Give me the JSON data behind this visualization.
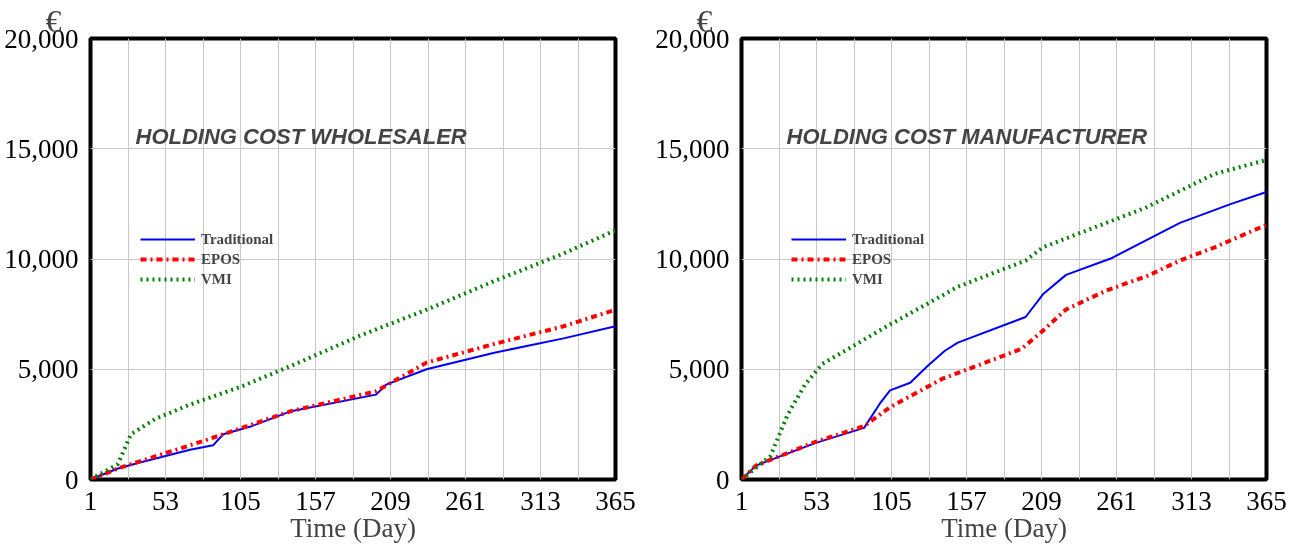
{
  "chart_data": [
    {
      "type": "line",
      "title": "HOLDING COST WHOLESALER",
      "xlabel": "Time (Day)",
      "ylabel": "€",
      "xlim": [
        1,
        365
      ],
      "ylim": [
        0,
        20000
      ],
      "xticks": [
        1,
        {
          "value": 27,
          "label": null
        },
        53,
        {
          "value": 79,
          "label": null
        },
        105,
        {
          "value": 131,
          "label": null
        },
        157,
        {
          "value": 183,
          "label": null
        },
        209,
        {
          "value": 235,
          "label": null
        },
        261,
        {
          "value": 287,
          "label": null
        },
        313,
        {
          "value": 339,
          "label": null
        },
        365
      ],
      "yticks": [
        {
          "value": 0,
          "label": "0"
        },
        {
          "value": 5000,
          "label": "5,000"
        },
        {
          "value": 10000,
          "label": "10,000"
        },
        {
          "value": 15000,
          "label": "15,000"
        },
        {
          "value": 20000,
          "label": "20,000"
        }
      ],
      "grid": true,
      "legend": "top left",
      "series": [
        {
          "name": "Traditional",
          "color": "#0000ff",
          "line_style": "solid",
          "x": [
            1,
            20,
            34,
            70,
            86,
            93,
            112,
            126,
            140,
            199,
            206,
            234,
            281,
            329,
            365
          ],
          "values": [
            0,
            500,
            750,
            1350,
            1550,
            2050,
            2400,
            2750,
            3100,
            3850,
            4300,
            5000,
            5750,
            6400,
            6950
          ]
        },
        {
          "name": "EPOS",
          "color": "#ff0000",
          "line_style": "dashdot",
          "x": [
            1,
            20,
            34,
            70,
            93,
            140,
            199,
            234,
            281,
            329,
            365
          ],
          "values": [
            0,
            500,
            800,
            1550,
            2050,
            3100,
            4000,
            5300,
            6150,
            6950,
            7700
          ]
        },
        {
          "name": "VMI",
          "color": "#008000",
          "line_style": "dotted",
          "x": [
            1,
            20,
            29,
            46,
            70,
            105,
            140,
            187,
            234,
            281,
            329,
            365
          ],
          "values": [
            0,
            700,
            2050,
            2750,
            3400,
            4200,
            5150,
            6500,
            7700,
            9000,
            10250,
            11300
          ]
        }
      ]
    },
    {
      "type": "line",
      "title": "HOLDING COST MANUFACTURER",
      "xlabel": "Time (Day)",
      "ylabel": "€",
      "xlim": [
        1,
        365
      ],
      "ylim": [
        0,
        20000
      ],
      "xticks": [
        1,
        {
          "value": 27,
          "label": null
        },
        53,
        {
          "value": 79,
          "label": null
        },
        105,
        {
          "value": 131,
          "label": null
        },
        157,
        {
          "value": 183,
          "label": null
        },
        209,
        {
          "value": 235,
          "label": null
        },
        261,
        {
          "value": 287,
          "label": null
        },
        313,
        {
          "value": 339,
          "label": null
        },
        365
      ],
      "yticks": [
        {
          "value": 0,
          "label": "0"
        },
        {
          "value": 5000,
          "label": "5,000"
        },
        {
          "value": 10000,
          "label": "10,000"
        },
        {
          "value": 15000,
          "label": "15,000"
        },
        {
          "value": 20000,
          "label": "20,000"
        }
      ],
      "grid": true,
      "legend": "top left",
      "series": [
        {
          "name": "Traditional",
          "color": "#0000ff",
          "line_style": "solid",
          "x": [
            1,
            11,
            52,
            86,
            97,
            104,
            118,
            130,
            142,
            151,
            198,
            210,
            226,
            257,
            305,
            340,
            365
          ],
          "values": [
            0,
            630,
            1650,
            2340,
            3450,
            4040,
            4390,
            5150,
            5840,
            6210,
            7370,
            8400,
            9280,
            10020,
            11640,
            12490,
            13040
          ]
        },
        {
          "name": "EPOS",
          "color": "#ff0000",
          "line_style": "dashdot",
          "x": [
            1,
            11,
            52,
            86,
            104,
            140,
            195,
            209,
            226,
            254,
            283,
            305,
            329,
            365
          ],
          "values": [
            0,
            630,
            1700,
            2420,
            3280,
            4560,
            5920,
            6690,
            7710,
            8570,
            9250,
            9930,
            10530,
            11550
          ]
        },
        {
          "name": "VMI",
          "color": "#008000",
          "line_style": "dotted",
          "x": [
            1,
            21,
            33,
            45,
            57,
            104,
            151,
            198,
            210,
            281,
            329,
            365
          ],
          "values": [
            0,
            1060,
            2940,
            4300,
            5240,
            7030,
            8740,
            9930,
            10530,
            12320,
            13860,
            14490
          ]
        }
      ]
    }
  ]
}
